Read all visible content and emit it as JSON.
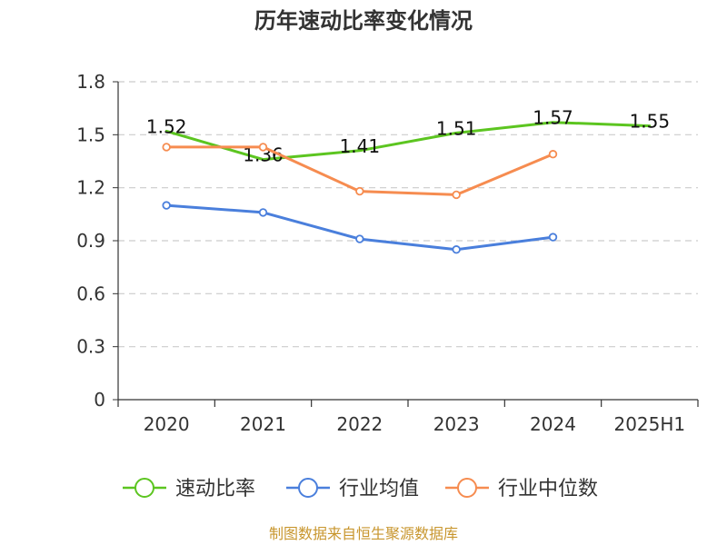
{
  "chart_data": {
    "type": "line",
    "title": "历年速动比率变化情况",
    "categories": [
      "2020",
      "2021",
      "2022",
      "2023",
      "2024",
      "2025H1"
    ],
    "ylim": [
      0,
      1.8
    ],
    "y_ticks": [
      "0",
      "0.3",
      "0.6",
      "0.9",
      "1.2",
      "1.5",
      "1.8"
    ],
    "y_tick_values": [
      0,
      0.3,
      0.6,
      0.9,
      1.2,
      1.5,
      1.8
    ],
    "grid": true,
    "legend_position": "bottom",
    "series": [
      {
        "name": "速动比率",
        "color": "#5cc520",
        "values": [
          1.52,
          1.36,
          1.41,
          1.51,
          1.57,
          1.55
        ],
        "labels": [
          "1.52",
          "1.36",
          "1.41",
          "1.51",
          "1.57",
          "1.55"
        ],
        "markers": false
      },
      {
        "name": "行业均值",
        "color": "#4a7fdc",
        "values": [
          1.1,
          1.06,
          0.91,
          0.85,
          0.92,
          null
        ],
        "markers": true
      },
      {
        "name": "行业中位数",
        "color": "#f68c50",
        "values": [
          1.43,
          1.43,
          1.18,
          1.16,
          1.39,
          null
        ],
        "markers": true
      }
    ]
  },
  "source_note": "制图数据来自恒生聚源数据库"
}
